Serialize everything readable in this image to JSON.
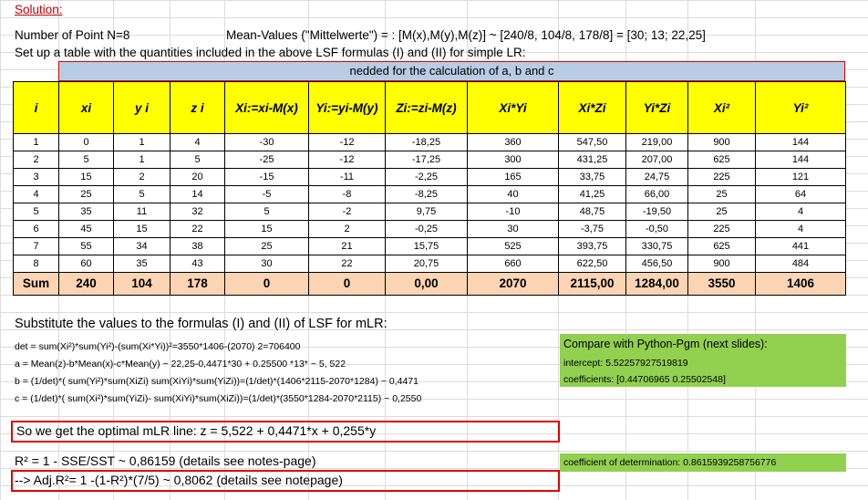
{
  "header": {
    "solution": "Solution:",
    "number_of_points": "Number of Point N=8",
    "mean_values": "Mean-Values (\"Mittelwerte\") = : [M(x),M(y),M(z)] ~ [240/8, 104/8, 178/8] = [30; 13; 22,25]",
    "setup": "Set up a table with the quantities included in the above LSF formulas (I) and (II) for simple LR:"
  },
  "table": {
    "banner": "nedded for the calculation of a, b and c",
    "columns": [
      "i",
      "xi",
      "y i",
      "z i",
      "Xi:=xi-M(x)",
      "Yi:=yi-M(y)",
      "Zi:=zi-M(z)",
      "Xi*Yi",
      "Xi*Zi",
      "Yi*Zi",
      "Xi²",
      "Yi²"
    ],
    "rows": [
      [
        "1",
        "0",
        "1",
        "4",
        "-30",
        "-12",
        "-18,25",
        "360",
        "547,50",
        "219,00",
        "900",
        "144"
      ],
      [
        "2",
        "5",
        "1",
        "5",
        "-25",
        "-12",
        "-17,25",
        "300",
        "431,25",
        "207,00",
        "625",
        "144"
      ],
      [
        "3",
        "15",
        "2",
        "20",
        "-15",
        "-11",
        "-2,25",
        "165",
        "33,75",
        "24,75",
        "225",
        "121"
      ],
      [
        "4",
        "25",
        "5",
        "14",
        "-5",
        "-8",
        "-8,25",
        "40",
        "41,25",
        "66,00",
        "25",
        "64"
      ],
      [
        "5",
        "35",
        "11",
        "32",
        "5",
        "-2",
        "9,75",
        "-10",
        "48,75",
        "-19,50",
        "25",
        "4"
      ],
      [
        "6",
        "45",
        "15",
        "22",
        "15",
        "2",
        "-0,25",
        "30",
        "-3,75",
        "-0,50",
        "225",
        "4"
      ],
      [
        "7",
        "55",
        "34",
        "38",
        "25",
        "21",
        "15,75",
        "525",
        "393,75",
        "330,75",
        "625",
        "441"
      ],
      [
        "8",
        "60",
        "35",
        "43",
        "30",
        "22",
        "20,75",
        "660",
        "622,50",
        "456,50",
        "900",
        "484"
      ]
    ],
    "sum_row": [
      "Sum",
      "240",
      "104",
      "178",
      "0",
      "0",
      "0,00",
      "2070",
      "2115,00",
      "1284,00",
      "3550",
      "1406"
    ]
  },
  "formulas": {
    "heading": "Substitute the values to the formulas (I) and (II) of LSF for mLR:",
    "det": "det = sum(Xi²)*sum(Yi²)-(sum(Xi*Yi))²=3550*1406-(2070) 2=706400",
    "a": "a = Mean(z)-b*Mean(x)-c*Mean(y) ~ 22,25-0,4471*30 + 0.25500 *13* ~ 5, 522",
    "b": "b = (1/det)*( sum(Yi²)*sum(XiZi)  sum(XiYi)*sum(YiZi))=(1/det)*(1406*2115-2070*1284) ~ 0,4471",
    "c": "c = (1/det)*( sum(Xi²)*sum(YiZi)- sum(XiYi)*sum(XiZi))=(1/det)*(3550*1284-2070*2115) ~ 0,2550"
  },
  "python": {
    "compare": "Compare with Python-Pgm (next slides):",
    "intercept": "intercept: 5.52257927519819",
    "coefficients": "coefficients: [0.44706965 0.25502548]",
    "determination": "coefficient of determination: 0.8615939258756776"
  },
  "results": {
    "optimal_line": "So we get the optimal mLR line:  z = 5,522 + 0,4471*x + 0,255*y",
    "r2": "R² = 1 - SSE/SST ~ 0,86159    (details see notes-page)",
    "adj_r2": "--> Adj.R²= 1 -(1-R²)*(7/5) ~ 0,8062  (details see notepage)"
  },
  "colors": {
    "header_yellow": "#ffff00",
    "banner_blue": "#b8cce4",
    "sum_peach": "#fbd4b4",
    "python_green": "#92d050",
    "highlight_red": "#e00000"
  }
}
